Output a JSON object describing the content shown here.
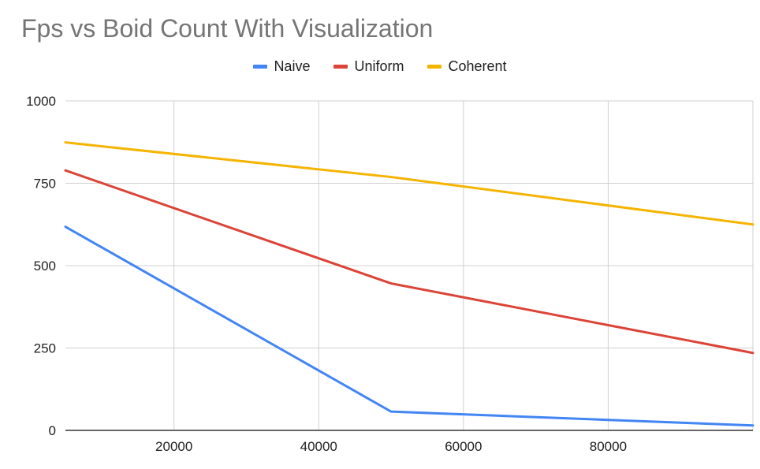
{
  "chart_data": {
    "type": "line",
    "title": "Fps vs Boid Count With Visualization",
    "xlabel": "",
    "ylabel": "",
    "xlim": [
      5000,
      100000
    ],
    "ylim": [
      0,
      1000
    ],
    "x_ticks": [
      20000,
      40000,
      60000,
      80000
    ],
    "x_tick_labels": [
      "20000",
      "40000",
      "60000",
      "80000"
    ],
    "y_ticks": [
      0,
      250,
      500,
      750,
      1000
    ],
    "y_tick_labels": [
      "0",
      "250",
      "500",
      "750",
      "1000"
    ],
    "grid": true,
    "legend_position": "top",
    "series": [
      {
        "name": "Naive",
        "color": "#4285F4",
        "points": [
          [
            5000,
            618
          ],
          [
            50000,
            57
          ],
          [
            100000,
            15
          ]
        ]
      },
      {
        "name": "Uniform",
        "color": "#DB4437",
        "points": [
          [
            5000,
            789
          ],
          [
            50000,
            446
          ],
          [
            100000,
            235
          ]
        ]
      },
      {
        "name": "Coherent",
        "color": "#F4B400",
        "points": [
          [
            5000,
            874
          ],
          [
            50000,
            769
          ],
          [
            100000,
            625
          ]
        ]
      }
    ]
  }
}
